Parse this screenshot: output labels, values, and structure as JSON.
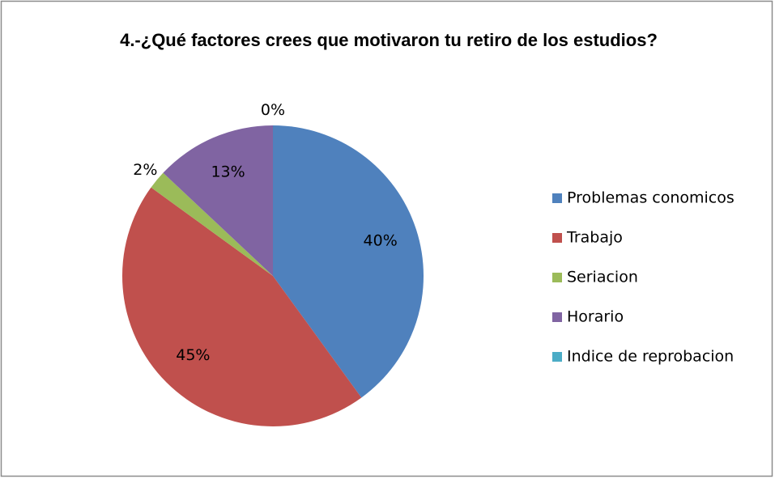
{
  "chart_data": {
    "type": "pie",
    "title": "4.-¿Qué factores crees que motivaron tu retiro de los estudios?",
    "categories": [
      "Problemas conomicos",
      "Trabajo",
      "Seriacion",
      "Horario",
      "Indice de reprobacion"
    ],
    "values": [
      40,
      45,
      2,
      13,
      0
    ],
    "value_labels": [
      "40%",
      "45%",
      "2%",
      "13%",
      "0%"
    ],
    "colors": [
      "#4f81bd",
      "#c0504d",
      "#9bbb59",
      "#8064a2",
      "#4bacc6"
    ],
    "legend": "right"
  }
}
